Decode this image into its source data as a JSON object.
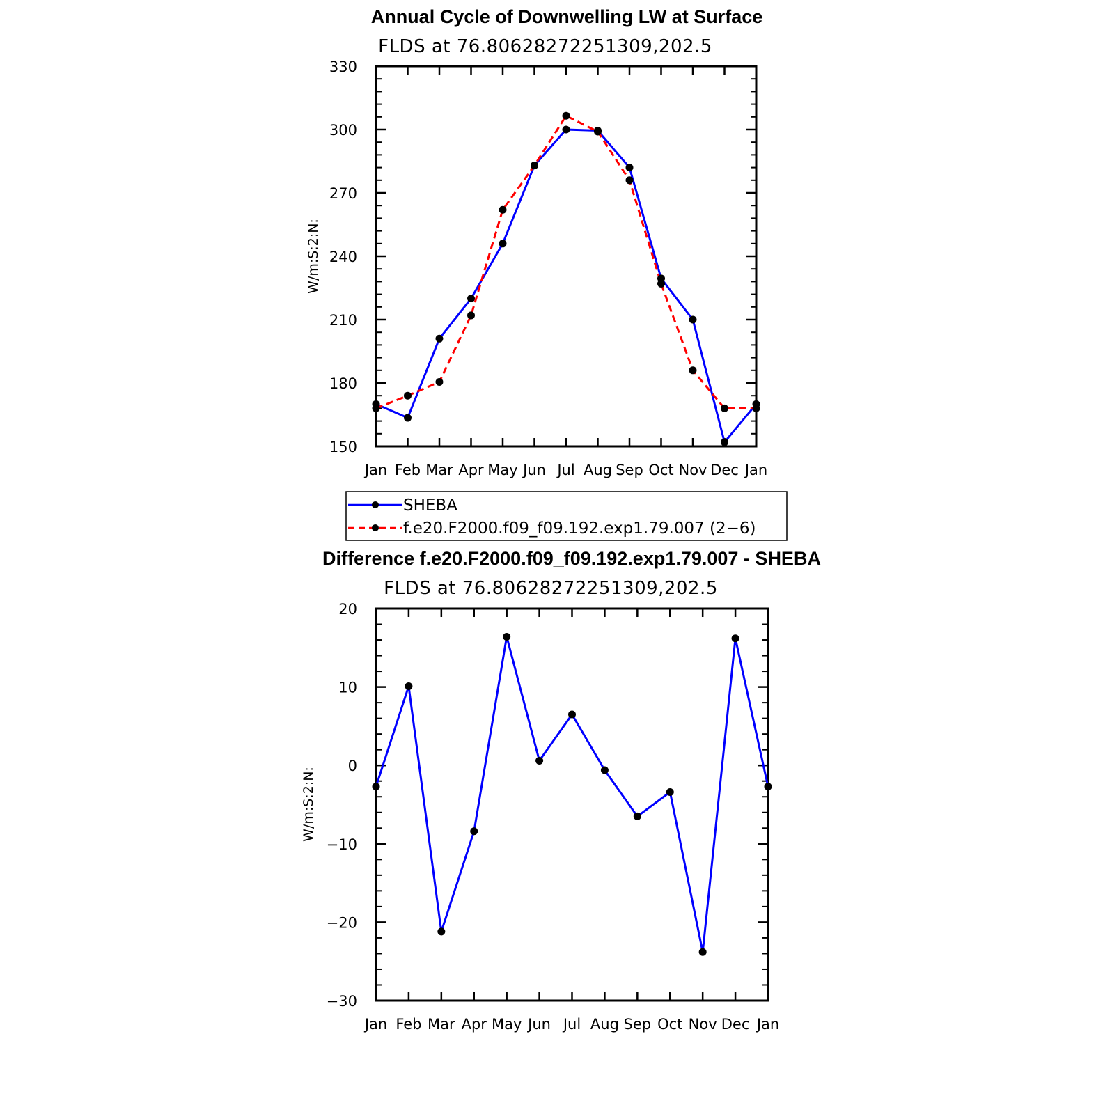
{
  "chart_data": [
    {
      "type": "line",
      "title": "Annual Cycle of Downwelling LW at Surface",
      "subtitle": "FLDS at 76.80628272251309,202.5",
      "ylabel": "W/m:S:2:N:",
      "xlabel": "",
      "categories": [
        "Jan",
        "Feb",
        "Mar",
        "Apr",
        "May",
        "Jun",
        "Jul",
        "Aug",
        "Sep",
        "Oct",
        "Nov",
        "Dec",
        "Jan"
      ],
      "ylim": [
        150,
        330
      ],
      "yticks": [
        "150",
        "180",
        "210",
        "240",
        "270",
        "300",
        "330"
      ],
      "series": [
        {
          "name": "SHEBA",
          "color": "#0000ff",
          "dash": "solid",
          "values": [
            170,
            163.5,
            201,
            220,
            246,
            283,
            300,
            299.5,
            282,
            229.5,
            210,
            152,
            170
          ]
        },
        {
          "name": "f.e20.F2000.f09_f09.192.exp1.79.007 (2−6)",
          "color": "#ff0000",
          "dash": "dashed",
          "values": [
            168,
            174,
            180.5,
            212,
            262,
            283,
            306.5,
            299,
            276,
            227,
            186,
            168,
            168
          ]
        }
      ],
      "legend": "bottom"
    },
    {
      "type": "line",
      "title": "Difference f.e20.F2000.f09_f09.192.exp1.79.007 - SHEBA",
      "subtitle": "FLDS at 76.80628272251309,202.5",
      "ylabel": "W/m:S:2:N:",
      "xlabel": "",
      "categories": [
        "Jan",
        "Feb",
        "Mar",
        "Apr",
        "May",
        "Jun",
        "Jul",
        "Aug",
        "Sep",
        "Oct",
        "Nov",
        "Dec",
        "Jan"
      ],
      "ylim": [
        -30,
        20
      ],
      "yticks": [
        "−30",
        "−20",
        "−10",
        "0",
        "10",
        "20"
      ],
      "series": [
        {
          "name": "",
          "color": "#0000ff",
          "dash": "solid",
          "values": [
            -2.7,
            10.1,
            -21.2,
            -8.4,
            16.4,
            0.6,
            6.5,
            -0.6,
            -6.5,
            -3.4,
            -23.8,
            16.2,
            -2.7
          ]
        }
      ]
    }
  ]
}
